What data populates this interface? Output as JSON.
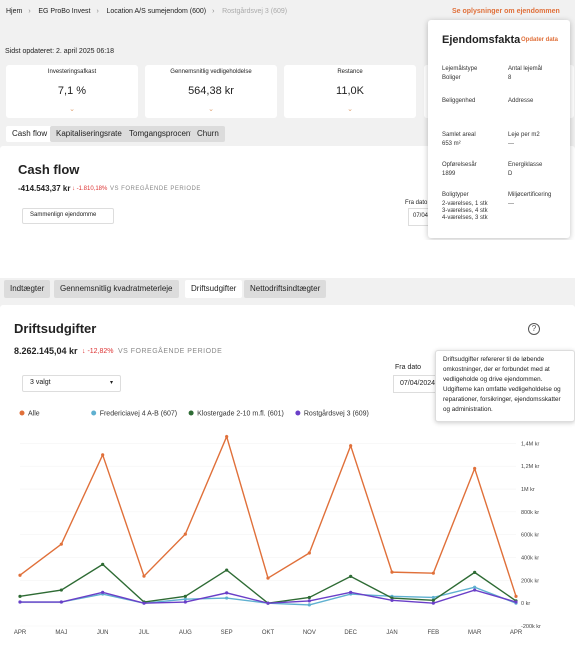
{
  "breadcrumb": [
    "Hjem",
    "EG ProBo Invest",
    "Location A/S sumejendom (600)",
    "Rostgårdsvej 3 (609)"
  ],
  "header_link": "Se oplysninger om ejendommen",
  "last_updated": "Sidst opdateret: 2. april 2025 06:18",
  "kpis": [
    {
      "label": "Investeringsafkast",
      "value": "7,1 %"
    },
    {
      "label": "Gennemsnitlig vedligeholdelse",
      "value": "564,38 kr"
    },
    {
      "label": "Restance",
      "value": "11,0K"
    }
  ],
  "top_tabs": [
    "Cash flow",
    "Kapitaliseringsrate",
    "Tomgangsprocent",
    "Churn"
  ],
  "cash_flow": {
    "title": "Cash flow",
    "total": "-414.543,37 kr",
    "change": "↓ -1.810,18%",
    "compare": "VS FOREGÅENDE PERIODE",
    "date_label": "Fra dato",
    "date": "07/04",
    "select": "Sammenlign ejendomme"
  },
  "property_facts": {
    "title": "Ejendomsfakta",
    "action": "Opdater data",
    "fields": [
      {
        "label": "Lejemålstype",
        "value": [
          "Boliger"
        ]
      },
      {
        "label": "Antal lejemål",
        "value": [
          "8"
        ]
      },
      {
        "label": "Beliggenhed"
      },
      {
        "label": "Addresse"
      },
      {
        "label": "Samlet areal",
        "value": [
          "653 m²"
        ]
      },
      {
        "label": "Leje per m2",
        "value": [
          "---"
        ]
      },
      {
        "label": "Opførelsesår",
        "value": [
          "1899"
        ]
      },
      {
        "label": "Energiklasse",
        "value": [
          "D"
        ]
      },
      {
        "label": "Boligtyper",
        "value": [
          "2-værelses, 1 stk",
          "3-værelses, 4 stk",
          "4-værelses, 3 stk"
        ]
      },
      {
        "label": "Miljøcertificering",
        "value": [
          "---"
        ]
      }
    ]
  },
  "bottom_tabs": [
    "Indtægter",
    "Gennemsnitlig kvadratmeterleje",
    "Driftsudgifter",
    "Nettodriftsindtægter"
  ],
  "driftsudgifter": {
    "title": "Driftsudgifter",
    "total": "8.262.145,04 kr",
    "change": "↓ -12,82%",
    "compare": "VS FOREGÅENDE PERIODE",
    "tooltip": "Driftsudgifter refererer til de løbende omkostninger, der er forbundet med at vedligeholde og drive ejendommen. Udgifterne kan omfatte vedligeholdelse og reparationer, forsikringer, ejendomsskatter og administration.",
    "date_label": "Fra dato",
    "date": "07/04/2024",
    "select": "3 valgt",
    "chart": {
      "type": "line",
      "categories": [
        "APR",
        "MAJ",
        "JUN",
        "JUL",
        "AUG",
        "SEP",
        "OKT",
        "NOV",
        "DEC",
        "JAN",
        "FEB",
        "MAR",
        "APR"
      ],
      "series": [
        {
          "name": "Alle",
          "color": "#e0703a",
          "values": [
            245000,
            517000,
            1300000,
            237000,
            605000,
            1460000,
            220000,
            440000,
            1380000,
            272000,
            263000,
            1180000,
            60000
          ]
        },
        {
          "name": "Fredericiavej 4 A-B (607)",
          "color": "#5fb0d0",
          "values": [
            10000,
            10000,
            80000,
            0,
            35000,
            45000,
            0,
            -15000,
            80000,
            60000,
            50000,
            140000,
            0
          ]
        },
        {
          "name": "Klostergade 2-10 m.fl. (601)",
          "color": "#2e6b34",
          "values": [
            60000,
            115000,
            340000,
            10000,
            60000,
            290000,
            0,
            50000,
            235000,
            45000,
            25000,
            270000,
            20000
          ]
        },
        {
          "name": "Rostgårdsvej 3 (609)",
          "color": "#6a3fc8",
          "values": [
            10000,
            10000,
            95000,
            0,
            10000,
            90000,
            0,
            20000,
            95000,
            25000,
            0,
            115000,
            10000
          ]
        }
      ],
      "ylim": [
        -200000,
        1500000
      ],
      "yticks": [
        {
          "value": 1400000,
          "label": "1,4M kr"
        },
        {
          "value": 1200000,
          "label": "1,2M kr"
        },
        {
          "value": 1000000,
          "label": "1M kr"
        },
        {
          "value": 800000,
          "label": "800k kr"
        },
        {
          "value": 600000,
          "label": "600k kr"
        },
        {
          "value": 400000,
          "label": "400k kr"
        },
        {
          "value": 200000,
          "label": "200k kr"
        },
        {
          "value": 0,
          "label": "0 kr"
        },
        {
          "value": -200000,
          "label": "-200k kr"
        }
      ],
      "grid": true
    }
  }
}
